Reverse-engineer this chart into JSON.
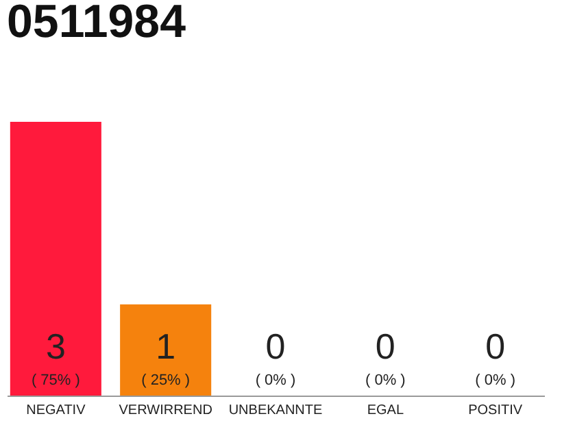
{
  "chart_data": {
    "type": "bar",
    "title": "0511984",
    "categories": [
      "NEGATIV",
      "VERWIRREND",
      "UNBEKANNTE",
      "EGAL",
      "POSITIV"
    ],
    "values": [
      3,
      1,
      0,
      0,
      0
    ],
    "colors": [
      "#ff1a3c",
      "#f5820d",
      "#eeeeee",
      "#eeeeee",
      "#eeeeee"
    ],
    "data_labels": true,
    "tick_labels": "x",
    "annotations": [
      "( 75% )",
      "( 25% )",
      "( 0% )",
      "( 0% )",
      "( 0% )"
    ]
  }
}
